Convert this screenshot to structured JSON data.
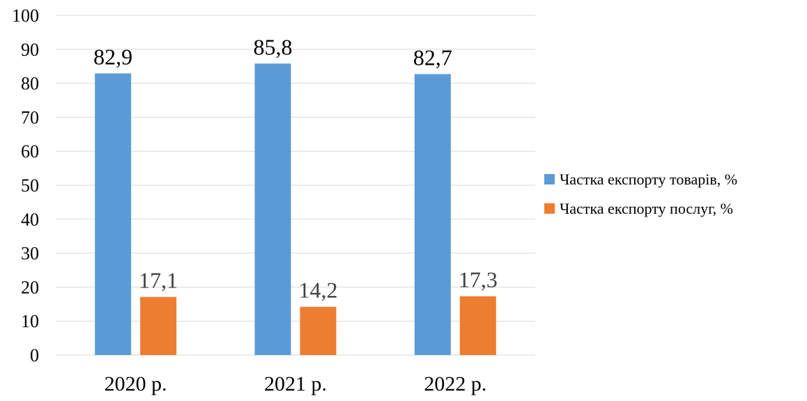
{
  "chart_data": {
    "type": "bar",
    "categories": [
      "2020 р.",
      "2021 р.",
      "2022 р."
    ],
    "series": [
      {
        "name": "Частка експорту товарів, %",
        "values": [
          82.9,
          85.8,
          82.7
        ],
        "labels": [
          "82,9",
          "85,8",
          "82,7"
        ],
        "color": "#5B9BD5"
      },
      {
        "name": "Частка експорту послуг, %",
        "values": [
          17.1,
          14.2,
          17.3
        ],
        "labels": [
          "17,1",
          "14,2",
          "17,3"
        ],
        "color": "#ED7D31"
      }
    ],
    "ylim": [
      0,
      100
    ],
    "yticks": [
      0,
      10,
      20,
      30,
      40,
      50,
      60,
      70,
      80,
      90,
      100
    ],
    "grid": true,
    "legend_position": "right",
    "title": "",
    "xlabel": "",
    "ylabel": ""
  }
}
